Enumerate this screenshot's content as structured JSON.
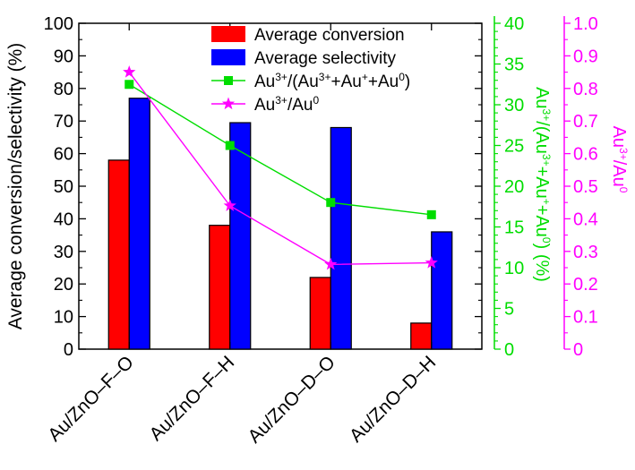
{
  "chart_data": {
    "type": "bar",
    "categories": [
      "Au/ZnO–F–O",
      "Au/ZnO–F–H",
      "Au/ZnO–D–O",
      "Au/ZnO–D–H"
    ],
    "series": [
      {
        "name": "Average conversion",
        "type": "bar",
        "axis": "left",
        "color": "#ff0000",
        "values": [
          58,
          38,
          22,
          8
        ]
      },
      {
        "name": "Average selectivity",
        "type": "bar",
        "axis": "left",
        "color": "#0000ff",
        "values": [
          77,
          69.5,
          68,
          36
        ]
      },
      {
        "name_parts": [
          [
            "Au",
            ""
          ],
          [
            "3+",
            "sup"
          ],
          [
            "/(Au",
            ""
          ],
          [
            "3+",
            "sup"
          ],
          [
            "+Au",
            ""
          ],
          [
            "+",
            "sup"
          ],
          [
            "+Au",
            ""
          ],
          [
            "0",
            "sup"
          ],
          [
            ")",
            ""
          ]
        ],
        "type": "line",
        "marker": "square",
        "axis": "right1",
        "color": "#00dd00",
        "values": [
          32.5,
          25,
          18,
          16.5
        ]
      },
      {
        "name_parts": [
          [
            "Au",
            ""
          ],
          [
            "3+",
            "sup"
          ],
          [
            "/Au",
            ""
          ],
          [
            "0",
            "sup"
          ]
        ],
        "type": "line",
        "marker": "star",
        "axis": "right2",
        "color": "#ff00ff",
        "values": [
          0.85,
          0.44,
          0.26,
          0.265
        ]
      }
    ],
    "ylabel": "Average conversion/selectivity (%)",
    "ylim": [
      0,
      100
    ],
    "yticks": [
      "0",
      "10",
      "20",
      "30",
      "40",
      "50",
      "60",
      "70",
      "80",
      "90",
      "100"
    ],
    "y2label_parts": [
      [
        "Au",
        ""
      ],
      [
        "3+",
        "sup"
      ],
      [
        "/(Au",
        ""
      ],
      [
        "3+",
        "sup"
      ],
      [
        "+Au",
        ""
      ],
      [
        "+",
        "sup"
      ],
      [
        "+Au",
        ""
      ],
      [
        "0",
        "sup"
      ],
      [
        ") (%)",
        ""
      ]
    ],
    "y2lim": [
      0,
      40
    ],
    "y2ticks": [
      "0",
      "5",
      "10",
      "15",
      "20",
      "25",
      "30",
      "35",
      "40"
    ],
    "y2color": "#00dd00",
    "y3label_parts": [
      [
        "Au",
        ""
      ],
      [
        "3+",
        "sup"
      ],
      [
        "/Au",
        ""
      ],
      [
        "0",
        "sup"
      ]
    ],
    "y3lim": [
      0,
      1.0
    ],
    "y3ticks": [
      "0",
      "0.1",
      "0.2",
      "0.3",
      "0.4",
      "0.5",
      "0.6",
      "0.7",
      "0.8",
      "0.9",
      "1.0"
    ],
    "y3color": "#ff00ff",
    "legend_position": "top-center",
    "grid": false
  }
}
